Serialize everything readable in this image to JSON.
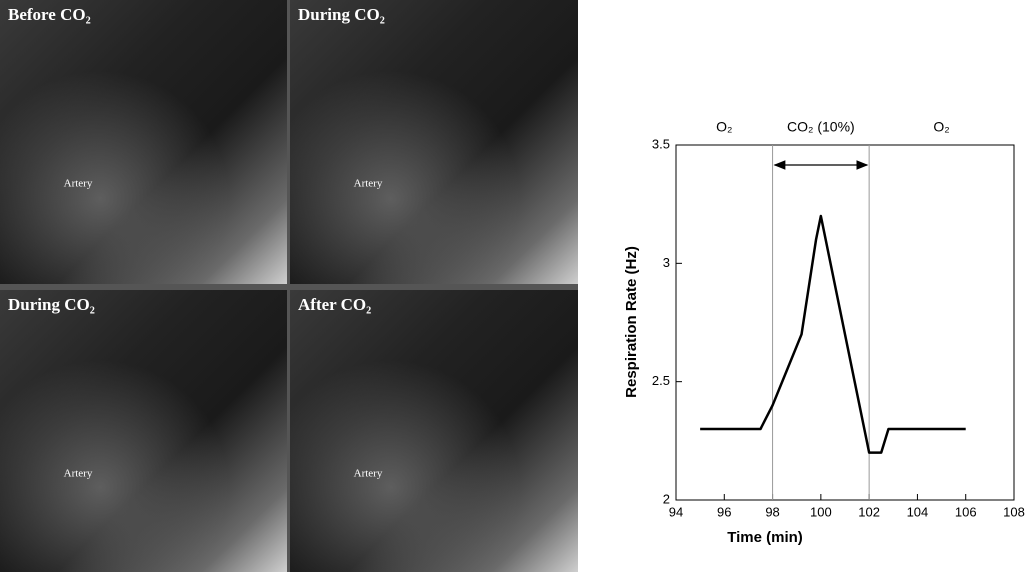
{
  "panels": [
    {
      "title": "Before CO₂",
      "label": "Artery"
    },
    {
      "title": "During CO₂",
      "label": "Artery"
    },
    {
      "title": "During CO₂",
      "label": "Artery"
    },
    {
      "title": "After CO₂",
      "label": "Artery"
    }
  ],
  "chart_data": {
    "type": "line",
    "xlabel": "Time (min)",
    "ylabel": "Respiration Rate (Hz)",
    "x": [
      95,
      97.5,
      98,
      99.2,
      99.8,
      100,
      100.2,
      102,
      102.5,
      102.8,
      106
    ],
    "values": [
      2.3,
      2.3,
      2.4,
      2.7,
      3.1,
      3.2,
      3.1,
      2.2,
      2.2,
      2.3,
      2.3
    ],
    "color": "#000000",
    "xlim": [
      94,
      108
    ],
    "xticks": [
      94,
      96,
      98,
      100,
      102,
      104,
      106,
      108
    ],
    "ylim": [
      2,
      3.5
    ],
    "yticks": [
      2,
      2.5,
      3,
      3.5
    ],
    "markers": [
      98,
      102
    ],
    "regions": [
      "O₂",
      "CO₂ (10%)",
      "O₂"
    ]
  }
}
